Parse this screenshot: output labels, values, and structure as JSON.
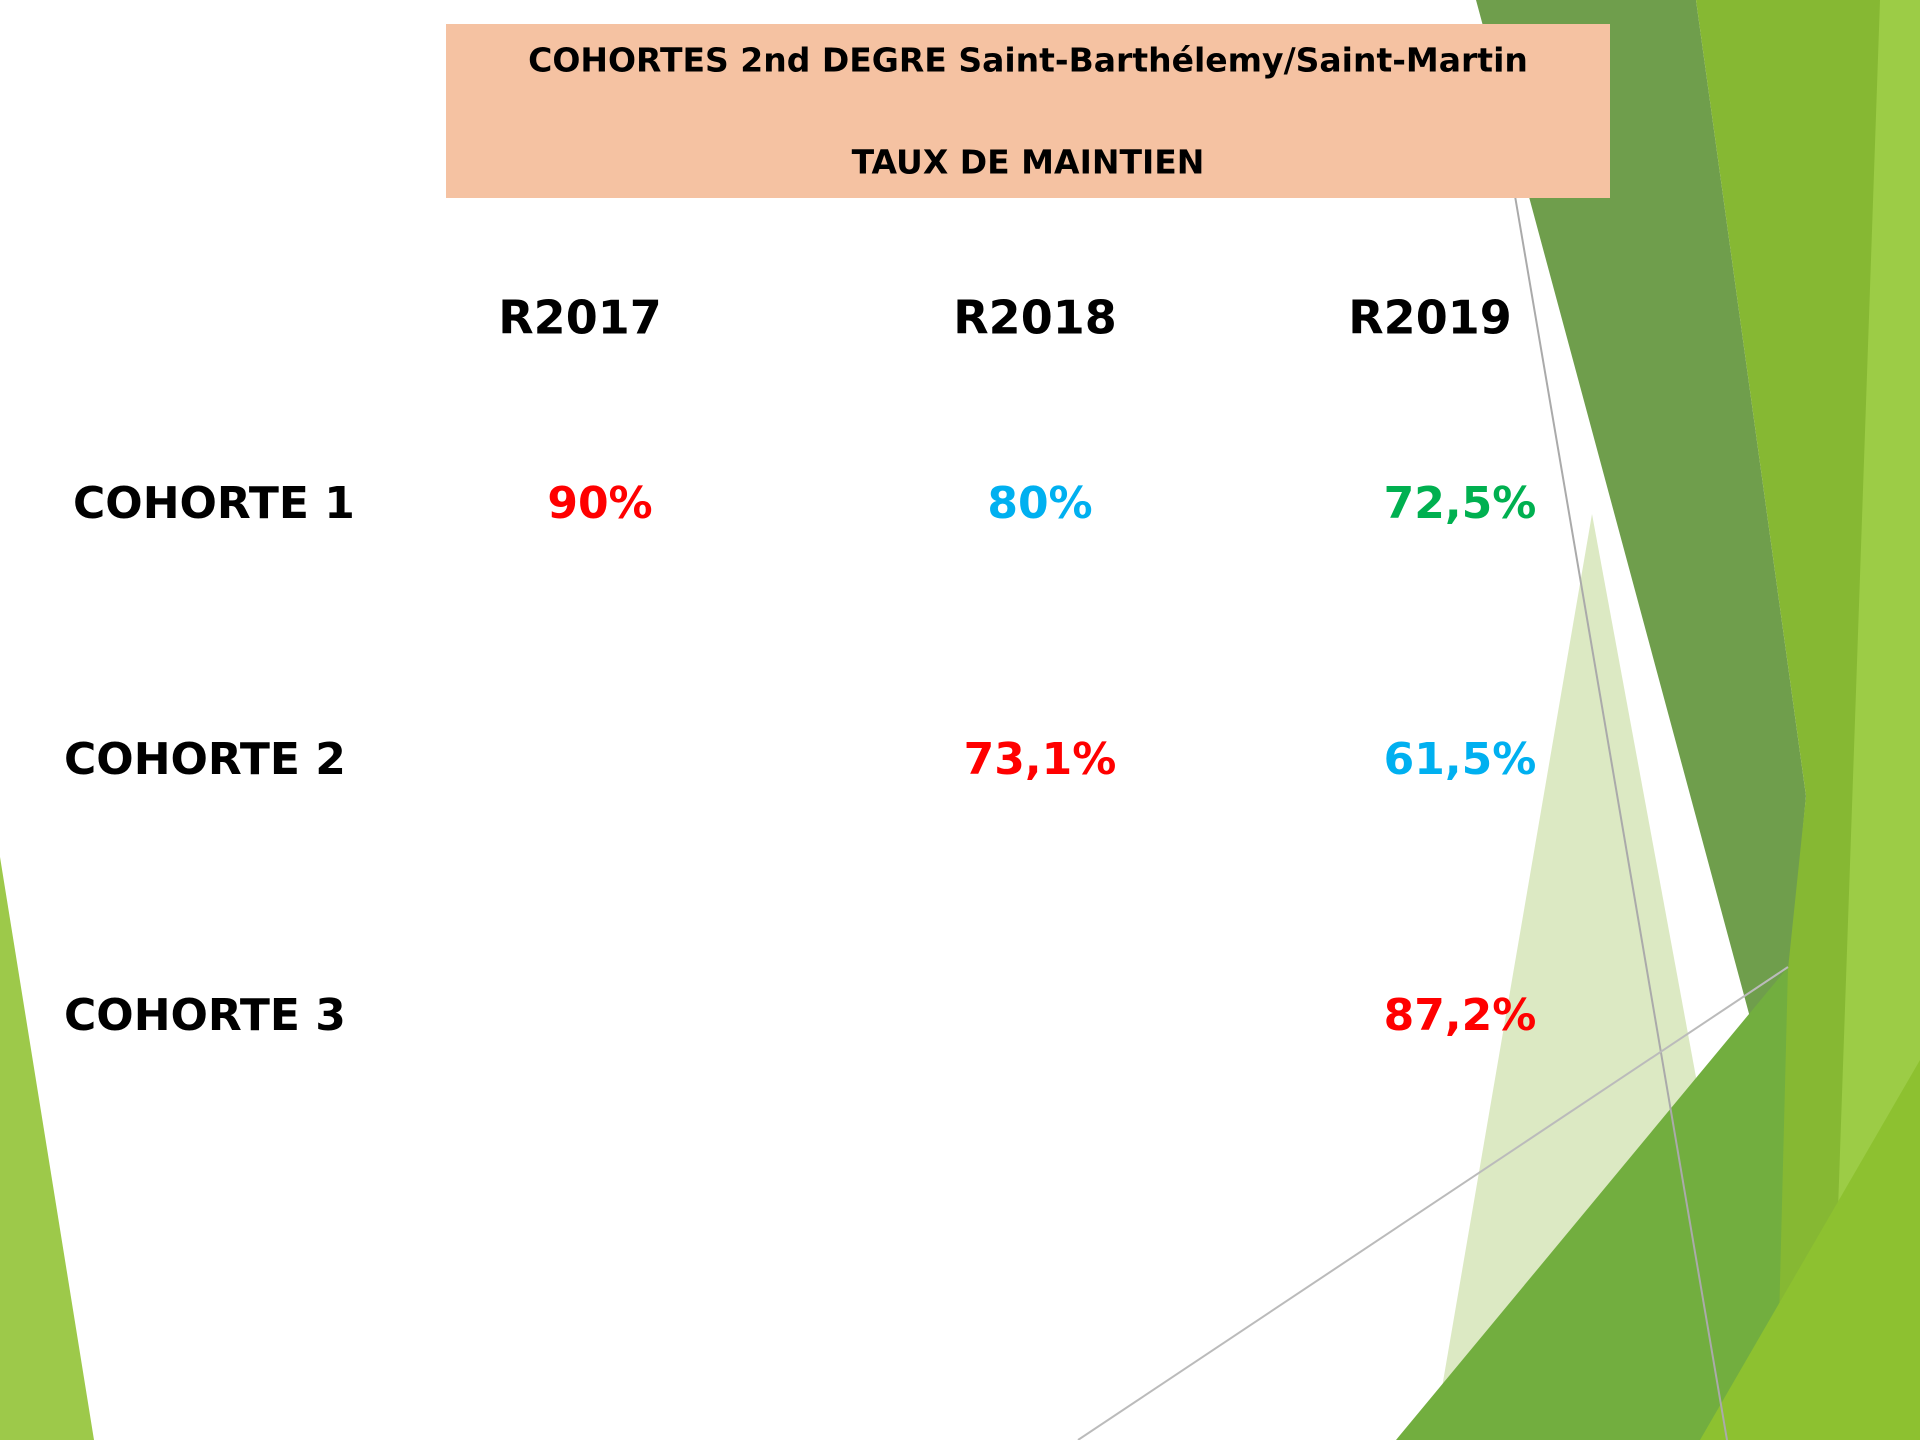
{
  "header": {
    "line1": "COHORTES 2nd DEGRE Saint-Barthélemy/Saint-Martin",
    "line2": "TAUX DE MAINTIEN"
  },
  "table": {
    "columns": [
      "R2017",
      "R2018",
      "R2019"
    ],
    "rows": [
      {
        "label": "COHORTE 1",
        "cells": [
          {
            "text": "90%",
            "color": "#ff0000"
          },
          {
            "text": "80%",
            "color": "#00b0f0"
          },
          {
            "text": "72,5%",
            "color": "#00b050"
          }
        ]
      },
      {
        "label": "COHORTE 2",
        "cells": [
          null,
          {
            "text": "73,1%",
            "color": "#ff0000"
          },
          {
            "text": "61,5%",
            "color": "#00b0f0"
          }
        ]
      },
      {
        "label": "COHORTE 3",
        "cells": [
          null,
          null,
          {
            "text": "87,2%",
            "color": "#ff0000"
          }
        ]
      }
    ]
  }
}
